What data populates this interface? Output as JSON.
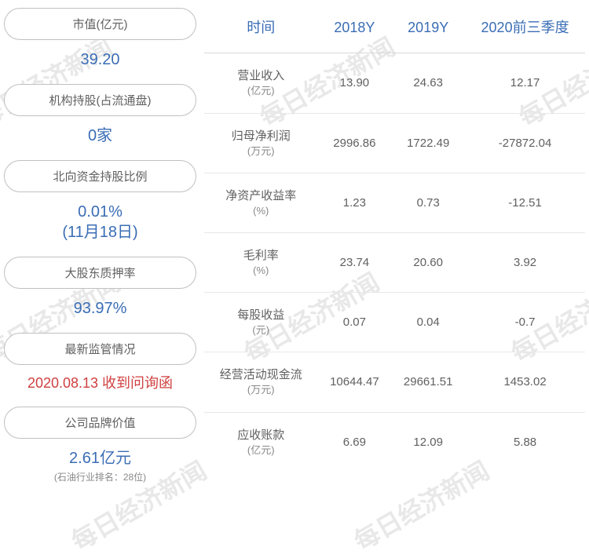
{
  "watermark": "每日经济新闻",
  "left_items": [
    {
      "label": "市值(亿元)",
      "value": "39.20",
      "value_class": "val-main"
    },
    {
      "label": "机构持股(占流通盘)",
      "value": "0家",
      "value_class": "val-main"
    },
    {
      "label": "北向资金持股比例",
      "value": "0.01%",
      "value2": "(11月18日)",
      "value_class": "val-main"
    },
    {
      "label": "大股东质押率",
      "value": "93.97%",
      "value_class": "val-main"
    },
    {
      "label": "最新监管情况",
      "value": "2020.08.13 收到问询函",
      "value_class": "val-red"
    },
    {
      "label": "公司品牌价值",
      "value": "2.61亿元",
      "value_class": "val-main",
      "sub": "(石油行业排名：28位)"
    }
  ],
  "table": {
    "headers": [
      "时间",
      "2018Y",
      "2019Y",
      "2020前三季度"
    ],
    "rows": [
      {
        "metric": "营业收入",
        "unit": "(亿元)",
        "v1": "13.90",
        "v2": "24.63",
        "v3": "12.17"
      },
      {
        "metric": "归母净利润",
        "unit": "(万元)",
        "v1": "2996.86",
        "v2": "1722.49",
        "v3": "-27872.04"
      },
      {
        "metric": "净资产收益率",
        "unit": "(%)",
        "v1": "1.23",
        "v2": "0.73",
        "v3": "-12.51"
      },
      {
        "metric": "毛利率",
        "unit": "(%)",
        "v1": "23.74",
        "v2": "20.60",
        "v3": "3.92"
      },
      {
        "metric": "每股收益",
        "unit": "(元)",
        "v1": "0.07",
        "v2": "0.04",
        "v3": "-0.7"
      },
      {
        "metric": "经营活动现金流",
        "unit": "(万元)",
        "v1": "10644.47",
        "v2": "29661.51",
        "v3": "1453.02"
      },
      {
        "metric": "应收账款",
        "unit": "(亿元)",
        "v1": "6.69",
        "v2": "12.09",
        "v3": "5.88"
      }
    ]
  },
  "styling": {
    "accent_color": "#3a6db5",
    "alert_color": "#d04040",
    "text_color": "#606060",
    "border_color": "#c0c0c0",
    "divider_color": "#e8e8e8",
    "background": "#ffffff",
    "pill_radius": 22,
    "header_fontsize": 18,
    "body_fontsize": 15,
    "value_fontsize": 20
  }
}
